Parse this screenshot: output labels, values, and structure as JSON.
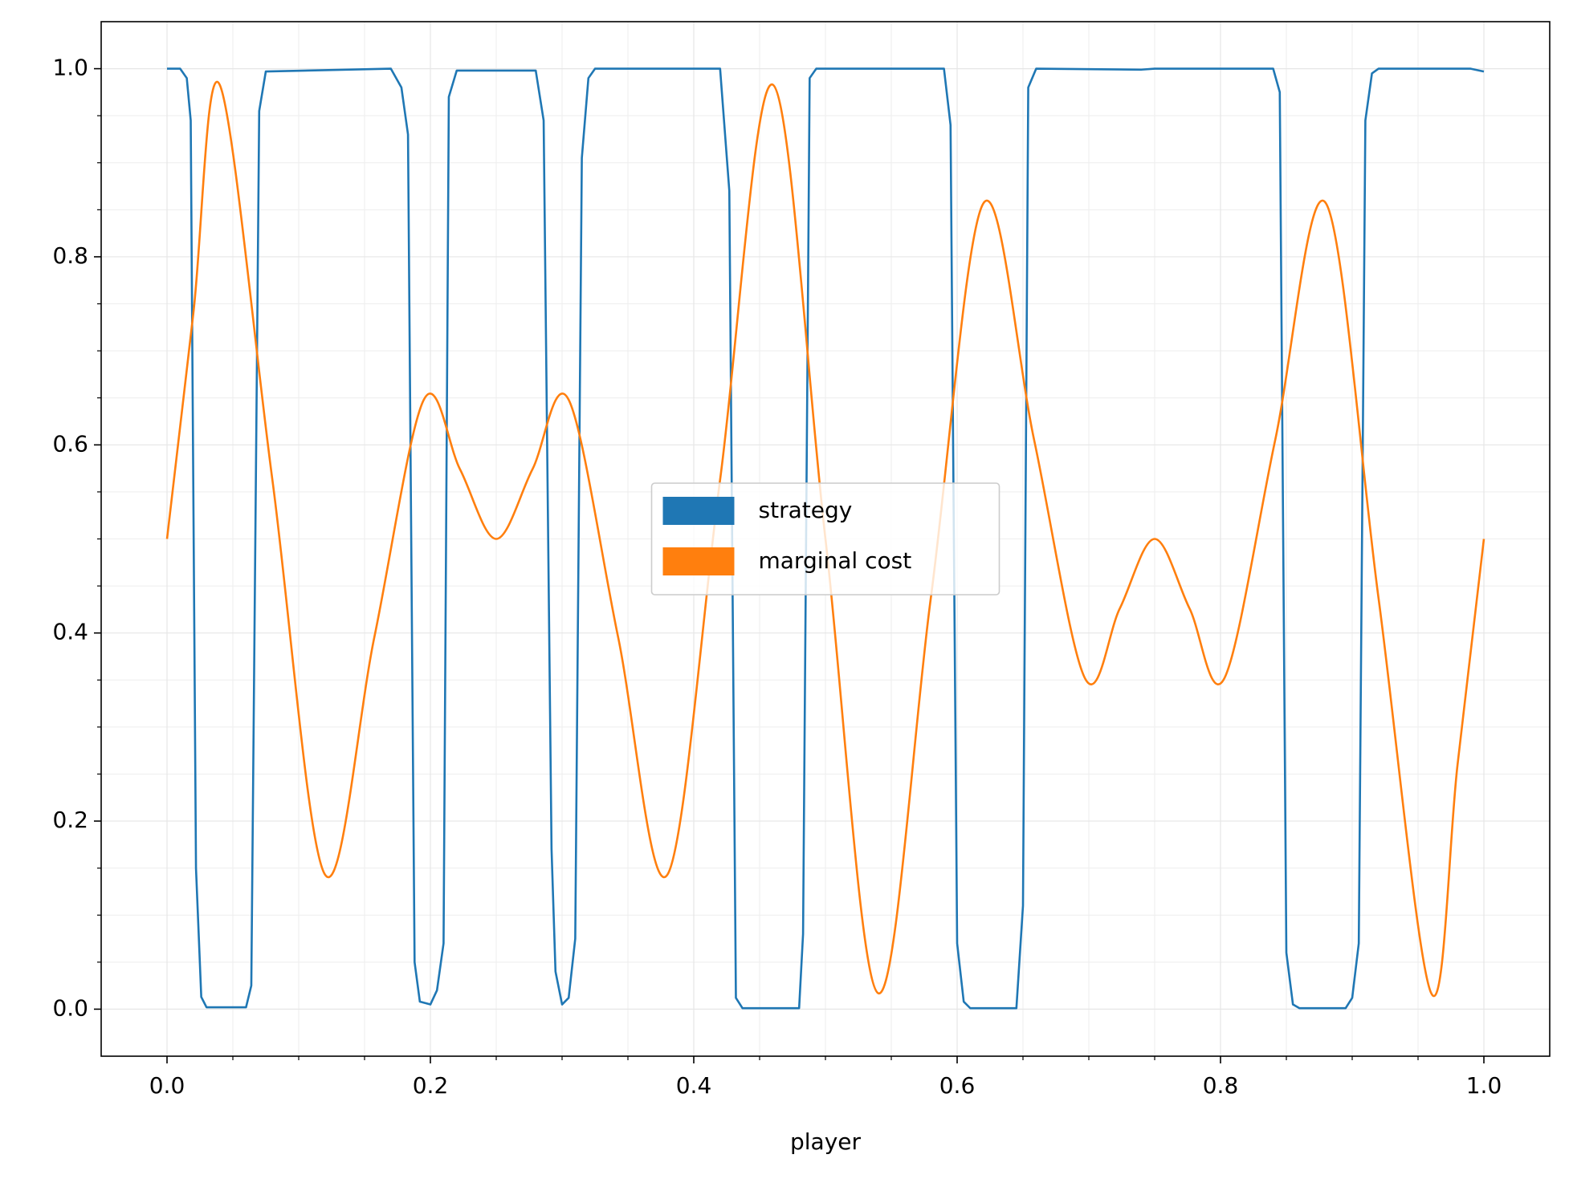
{
  "chart_data": {
    "type": "line",
    "x_label": "player",
    "xlim": [
      -0.05,
      1.05
    ],
    "ylim": [
      -0.05,
      1.05
    ],
    "xticks": [
      {
        "value": 0,
        "label": "0.0"
      },
      0.2,
      0.4,
      0.6,
      0.8,
      {
        "value": 1,
        "label": "1.0"
      }
    ],
    "yticks": [
      {
        "value": 0,
        "label": "0.0"
      },
      0.2,
      0.4,
      0.6,
      0.8,
      {
        "value": 1,
        "label": "1.0"
      }
    ],
    "xminorticks": [
      0.05,
      0.1,
      0.15,
      0.25,
      0.3,
      0.35,
      0.45,
      0.5,
      0.55,
      0.65,
      0.7,
      0.75,
      0.85,
      0.9,
      0.95
    ],
    "yminorticks": [
      0.05,
      0.1,
      0.15,
      0.25,
      0.3,
      0.35,
      0.45,
      0.5,
      0.55,
      0.65,
      0.7,
      0.75,
      0.85,
      0.9,
      0.95
    ],
    "grid": true,
    "legend": "center",
    "series": [
      {
        "name": "strategy",
        "color": "#1f77b4",
        "smooth": false,
        "x": [
          0,
          0.01,
          0.015,
          0.018,
          0.022,
          0.026,
          0.03,
          0.06,
          0.064,
          0.07,
          0.075,
          0.17,
          0.178,
          0.183,
          0.188,
          0.192,
          0.2,
          0.205,
          0.21,
          0.214,
          0.22,
          0.28,
          0.286,
          0.292,
          0.295,
          0.3,
          0.305,
          0.31,
          0.315,
          0.32,
          0.325,
          0.42,
          0.427,
          0.432,
          0.437,
          0.48,
          0.483,
          0.488,
          0.493,
          0.59,
          0.595,
          0.6,
          0.605,
          0.61,
          0.645,
          0.65,
          0.654,
          0.66,
          0.74,
          0.75,
          0.84,
          0.845,
          0.85,
          0.855,
          0.86,
          0.895,
          0.9,
          0.905,
          0.91,
          0.915,
          0.92,
          0.99,
          1.0
        ],
        "values": [
          1.0,
          1.0,
          0.99,
          0.945,
          0.15,
          0.013,
          0.002,
          0.002,
          0.025,
          0.955,
          0.997,
          1.0,
          0.98,
          0.93,
          0.05,
          0.008,
          0.005,
          0.02,
          0.07,
          0.97,
          0.998,
          0.998,
          0.945,
          0.17,
          0.04,
          0.005,
          0.012,
          0.075,
          0.905,
          0.99,
          1.0,
          1.0,
          0.87,
          0.012,
          0.001,
          0.001,
          0.08,
          0.99,
          1.0,
          1.0,
          0.94,
          0.07,
          0.008,
          0.001,
          0.001,
          0.11,
          0.98,
          1.0,
          0.999,
          1.0,
          1.0,
          0.975,
          0.06,
          0.005,
          0.001,
          0.001,
          0.012,
          0.07,
          0.945,
          0.995,
          1.0,
          1.0,
          0.997
        ]
      },
      {
        "name": "marginal cost",
        "color": "#ff7f0e",
        "smooth": true,
        "x": [
          0,
          0.02,
          0.04,
          0.08,
          0.12,
          0.1575,
          0.195,
          0.2225,
          0.25,
          0.2775,
          0.305,
          0.3425,
          0.38,
          0.42,
          0.46,
          0.5,
          0.54,
          0.58,
          0.62,
          0.6585,
          0.697,
          0.7235,
          0.75,
          0.7765,
          0.803,
          0.8415,
          0.88,
          0.92,
          0.96,
          0.98,
          1.0
        ],
        "values": [
          0.5,
          0.74,
          0.983,
          0.563,
          0.143,
          0.396,
          0.648,
          0.574,
          0.5,
          0.574,
          0.648,
          0.396,
          0.143,
          0.563,
          0.983,
          0.5,
          0.017,
          0.437,
          0.857,
          0.605,
          0.352,
          0.426,
          0.5,
          0.426,
          0.352,
          0.605,
          0.857,
          0.437,
          0.017,
          0.26,
          0.5
        ]
      }
    ]
  }
}
